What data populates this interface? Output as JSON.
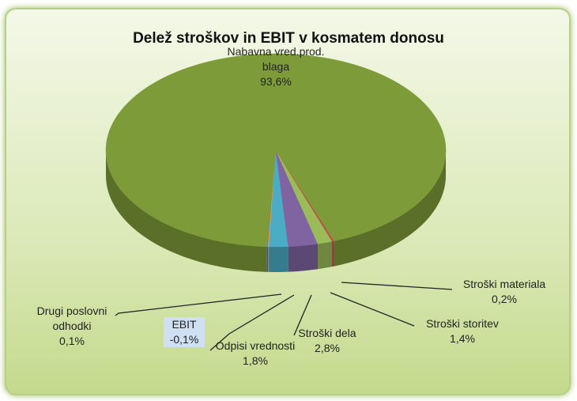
{
  "chart_data": {
    "type": "pie3d",
    "title": "Delež stroškov in EBIT v kosmatem donosu",
    "categories": [
      "Drugi poslovni odhodki",
      "EBIT",
      "Odpisi vrednosti",
      "Stroški dela",
      "Stroški storitev",
      "Stroški materiala",
      "Nabavna vred.prod. blaga"
    ],
    "values": [
      0.1,
      -0.1,
      1.8,
      2.8,
      1.4,
      0.2,
      93.6
    ],
    "value_labels": [
      "0,1%",
      "-0,1%",
      "1,8%",
      "2,8%",
      "1,4%",
      "0,2%",
      "93,6%"
    ],
    "colors": [
      "#4f81bd",
      "#f79646",
      "#4bacc6",
      "#8064a2",
      "#9bbb59",
      "#c0504d",
      "#7d9b39"
    ]
  }
}
